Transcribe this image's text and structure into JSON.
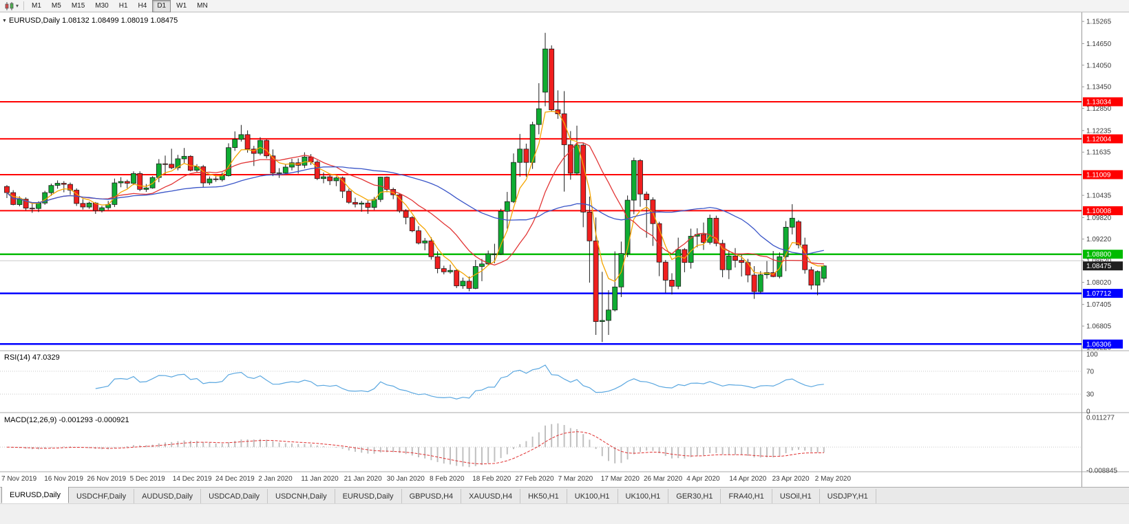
{
  "toolbar": {
    "timeframes": [
      "M1",
      "M5",
      "M15",
      "M30",
      "H1",
      "H4",
      "D1",
      "W1",
      "MN"
    ],
    "active_timeframe": "D1"
  },
  "chart_data": {
    "type": "candlestick",
    "symbol": "EURUSD",
    "period": "Daily",
    "info_line": "EURUSD,Daily 1.08132 1.08499 1.08019 1.08475",
    "ohlc": {
      "open": "1.08132",
      "high": "1.08499",
      "low": "1.08019",
      "close": "1.08475"
    },
    "price_axis": {
      "range": [
        1.0612,
        1.1544
      ],
      "ticks": [
        "1.15265",
        "1.14650",
        "1.14050",
        "1.13450",
        "1.12850",
        "1.12235",
        "1.11635",
        "1.10435",
        "1.09820",
        "1.09220",
        "1.08620",
        "1.08020",
        "1.07405",
        "1.06805",
        "1.06220"
      ]
    },
    "time_axis": [
      "7 Nov 2019",
      "16 Nov 2019",
      "26 Nov 2019",
      "5 Dec 2019",
      "14 Dec 2019",
      "24 Dec 2019",
      "2 Jan 2020",
      "11 Jan 2020",
      "21 Jan 2020",
      "30 Jan 2020",
      "8 Feb 2020",
      "18 Feb 2020",
      "27 Feb 2020",
      "7 Mar 2020",
      "17 Mar 2020",
      "26 Mar 2020",
      "4 Apr 2020",
      "14 Apr 2020",
      "23 Apr 2020",
      "2 May 2020"
    ],
    "candle_colors": {
      "up": "#0fac32",
      "down": "#f01f1f",
      "outline": "#1c1c1c"
    },
    "candles": [
      [
        1.1068,
        1.1072,
        1.1036,
        1.1051
      ],
      [
        1.1051,
        1.1058,
        1.1016,
        1.1018
      ],
      [
        1.1018,
        1.1041,
        1.1013,
        1.1033
      ],
      [
        1.1033,
        1.1038,
        1.1002,
        1.1008
      ],
      [
        1.1008,
        1.1021,
        1.0995,
        1.1007
      ],
      [
        1.1007,
        1.1027,
        1.0997,
        1.1022
      ],
      [
        1.1022,
        1.1056,
        1.1017,
        1.1051
      ],
      [
        1.1051,
        1.1076,
        1.1042,
        1.1071
      ],
      [
        1.1071,
        1.1085,
        1.1062,
        1.1077
      ],
      [
        1.1077,
        1.1083,
        1.1052,
        1.1074
      ],
      [
        1.1074,
        1.1079,
        1.1045,
        1.1058
      ],
      [
        1.1058,
        1.1063,
        1.1014,
        1.1021
      ],
      [
        1.1021,
        1.1033,
        1.1004,
        1.1011
      ],
      [
        1.1011,
        1.1026,
        1.1006,
        1.1022
      ],
      [
        1.1022,
        1.1025,
        1.0992,
        1.1001
      ],
      [
        1.1001,
        1.1014,
        1.0996,
        1.1009
      ],
      [
        1.1009,
        1.1028,
        1.1003,
        1.1018
      ],
      [
        1.1018,
        1.109,
        1.1011,
        1.1078
      ],
      [
        1.1078,
        1.1094,
        1.1066,
        1.1082
      ],
      [
        1.1082,
        1.1087,
        1.1063,
        1.1077
      ],
      [
        1.1077,
        1.111,
        1.1072,
        1.1104
      ],
      [
        1.1104,
        1.111,
        1.1055,
        1.106
      ],
      [
        1.106,
        1.1075,
        1.1053,
        1.1064
      ],
      [
        1.1064,
        1.1097,
        1.1062,
        1.1093
      ],
      [
        1.1093,
        1.1144,
        1.108,
        1.1131
      ],
      [
        1.1131,
        1.1154,
        1.1102,
        1.113
      ],
      [
        1.113,
        1.1173,
        1.1116,
        1.112
      ],
      [
        1.112,
        1.1156,
        1.1113,
        1.1145
      ],
      [
        1.1145,
        1.1175,
        1.1133,
        1.1152
      ],
      [
        1.1152,
        1.1155,
        1.111,
        1.1113
      ],
      [
        1.1113,
        1.113,
        1.1106,
        1.1123
      ],
      [
        1.1123,
        1.1128,
        1.1066,
        1.1078
      ],
      [
        1.1078,
        1.1096,
        1.1072,
        1.1089
      ],
      [
        1.1089,
        1.1096,
        1.1081,
        1.1087
      ],
      [
        1.1087,
        1.1107,
        1.1082,
        1.1098
      ],
      [
        1.1098,
        1.1188,
        1.1096,
        1.1176
      ],
      [
        1.1176,
        1.1221,
        1.1167,
        1.1199
      ],
      [
        1.1199,
        1.1239,
        1.1193,
        1.1212
      ],
      [
        1.1212,
        1.1224,
        1.1162,
        1.1172
      ],
      [
        1.1172,
        1.1181,
        1.1125,
        1.116
      ],
      [
        1.116,
        1.1205,
        1.1155,
        1.1196
      ],
      [
        1.1196,
        1.1199,
        1.1146,
        1.1153
      ],
      [
        1.1153,
        1.1171,
        1.1097,
        1.1105
      ],
      [
        1.1105,
        1.1119,
        1.1092,
        1.1106
      ],
      [
        1.1106,
        1.113,
        1.1103,
        1.1122
      ],
      [
        1.1122,
        1.1145,
        1.1113,
        1.1134
      ],
      [
        1.1134,
        1.1146,
        1.1104,
        1.1127
      ],
      [
        1.1127,
        1.1163,
        1.1119,
        1.115
      ],
      [
        1.115,
        1.1158,
        1.1128,
        1.1136
      ],
      [
        1.1136,
        1.1141,
        1.1086,
        1.109
      ],
      [
        1.109,
        1.1107,
        1.1077,
        1.1095
      ],
      [
        1.1095,
        1.1101,
        1.1072,
        1.1084
      ],
      [
        1.1084,
        1.1096,
        1.1069,
        1.1092
      ],
      [
        1.1092,
        1.1096,
        1.1036,
        1.1055
      ],
      [
        1.1055,
        1.1062,
        1.102,
        1.1024
      ],
      [
        1.1024,
        1.1037,
        1.101,
        1.1019
      ],
      [
        1.1019,
        1.1028,
        1.0998,
        1.1022
      ],
      [
        1.1022,
        1.1029,
        1.0992,
        1.101
      ],
      [
        1.101,
        1.1039,
        1.1003,
        1.1032
      ],
      [
        1.1032,
        1.1095,
        1.1025,
        1.1094
      ],
      [
        1.1094,
        1.1096,
        1.1052,
        1.106
      ],
      [
        1.106,
        1.1065,
        1.1033,
        1.1045
      ],
      [
        1.1045,
        1.1048,
        1.0995,
        1.1
      ],
      [
        1.1,
        1.1005,
        1.0963,
        1.0982
      ],
      [
        1.0982,
        1.0986,
        1.0941,
        1.0945
      ],
      [
        1.0945,
        1.0958,
        1.0907,
        1.0911
      ],
      [
        1.0911,
        1.0925,
        1.0891,
        1.0917
      ],
      [
        1.0917,
        1.0927,
        1.0865,
        1.0873
      ],
      [
        1.0873,
        1.0888,
        1.0827,
        1.084
      ],
      [
        1.084,
        1.0848,
        1.0824,
        1.0831
      ],
      [
        1.0831,
        1.0851,
        1.0826,
        1.0835
      ],
      [
        1.0835,
        1.0839,
        1.0786,
        1.0792
      ],
      [
        1.0792,
        1.0815,
        1.0784,
        1.0805
      ],
      [
        1.0805,
        1.0818,
        1.0777,
        1.0785
      ],
      [
        1.0785,
        1.0864,
        1.0783,
        1.0846
      ],
      [
        1.0846,
        1.0867,
        1.0805,
        1.0853
      ],
      [
        1.0853,
        1.089,
        1.0851,
        1.0881
      ],
      [
        1.0881,
        1.0909,
        1.0855,
        1.0881
      ],
      [
        1.0881,
        1.1006,
        1.0878,
        1.0999
      ],
      [
        1.0999,
        1.1053,
        1.0951,
        1.1026
      ],
      [
        1.1026,
        1.116,
        1.1022,
        1.1135
      ],
      [
        1.1135,
        1.1214,
        1.1095,
        1.1172
      ],
      [
        1.1172,
        1.1187,
        1.1095,
        1.1135
      ],
      [
        1.1135,
        1.1248,
        1.1117,
        1.124
      ],
      [
        1.124,
        1.1355,
        1.1213,
        1.1284
      ],
      [
        1.133,
        1.1495,
        1.1291,
        1.145
      ],
      [
        1.145,
        1.146,
        1.1277,
        1.1281
      ],
      [
        1.1281,
        1.1335,
        1.1256,
        1.127
      ],
      [
        1.127,
        1.1333,
        1.1054,
        1.1184
      ],
      [
        1.1184,
        1.1222,
        1.1087,
        1.1105
      ],
      [
        1.1105,
        1.1237,
        1.11,
        1.1183
      ],
      [
        1.1183,
        1.1189,
        1.0955,
        1.0997
      ],
      [
        1.0997,
        1.104,
        1.0801,
        1.0917
      ],
      [
        1.0917,
        1.0982,
        1.0656,
        1.0693
      ],
      [
        1.0693,
        1.0831,
        1.0636,
        1.0696
      ],
      [
        1.0696,
        1.078,
        1.0656,
        1.0725
      ],
      [
        1.0725,
        1.0888,
        1.0721,
        1.0789
      ],
      [
        1.0789,
        1.0915,
        1.0761,
        1.0882
      ],
      [
        1.0882,
        1.1043,
        1.0872,
        1.103
      ],
      [
        1.103,
        1.1148,
        1.0991,
        1.114
      ],
      [
        1.114,
        1.1144,
        1.1012,
        1.1047
      ],
      [
        1.1047,
        1.1054,
        1.0926,
        1.1031
      ],
      [
        1.1031,
        1.1038,
        1.0903,
        1.0965
      ],
      [
        1.0965,
        1.097,
        1.0819,
        1.0858
      ],
      [
        1.0858,
        1.0864,
        1.0773,
        1.0808
      ],
      [
        1.0808,
        1.0827,
        1.0768,
        1.0791
      ],
      [
        1.0791,
        1.0926,
        1.0783,
        1.0893
      ],
      [
        1.0893,
        1.0897,
        1.083,
        1.0857
      ],
      [
        1.0857,
        1.0951,
        1.084,
        1.093
      ],
      [
        1.093,
        1.0952,
        1.0899,
        1.0935
      ],
      [
        1.0935,
        1.0968,
        1.0892,
        1.0913
      ],
      [
        1.0913,
        1.099,
        1.0907,
        1.098
      ],
      [
        1.098,
        1.0987,
        1.0902,
        1.091
      ],
      [
        1.091,
        1.092,
        1.0816,
        1.0837
      ],
      [
        1.0837,
        1.0891,
        1.0811,
        1.0875
      ],
      [
        1.0875,
        1.0897,
        1.0843,
        1.0863
      ],
      [
        1.0863,
        1.0879,
        1.0818,
        1.0857
      ],
      [
        1.0857,
        1.0867,
        1.0802,
        1.0822
      ],
      [
        1.0822,
        1.0847,
        1.0756,
        1.0776
      ],
      [
        1.0776,
        1.0833,
        1.0771,
        1.0823
      ],
      [
        1.0823,
        1.0861,
        1.0812,
        1.0829
      ],
      [
        1.0829,
        1.0889,
        1.0816,
        1.0818
      ],
      [
        1.0818,
        1.0885,
        1.0813,
        1.0873
      ],
      [
        1.0873,
        1.0972,
        1.0833,
        1.0955
      ],
      [
        1.0955,
        1.1019,
        1.0935,
        1.098
      ],
      [
        1.097,
        1.0975,
        1.0896,
        1.0906
      ],
      [
        1.0906,
        1.0926,
        1.0826,
        1.0837
      ],
      [
        1.0837,
        1.0845,
        1.0782,
        1.0794
      ],
      [
        1.0794,
        1.0835,
        1.0766,
        1.0832
      ],
      [
        1.08132,
        1.08499,
        1.08019,
        1.08475
      ]
    ],
    "moving_averages": [
      {
        "name": "fast-ma",
        "period": 5,
        "method": "ema",
        "color": "#f5a500"
      },
      {
        "name": "mid-ma",
        "period": 13,
        "method": "sma",
        "color": "#e23535"
      },
      {
        "name": "slow-ma",
        "period": 34,
        "method": "sma",
        "color": "#3a55c8"
      }
    ],
    "h_lines": [
      {
        "price": 1.13034,
        "label": "1.13034",
        "color": "#ff0000",
        "width": 2
      },
      {
        "price": 1.12004,
        "label": "1.12004",
        "color": "#ff0000",
        "width": 2
      },
      {
        "price": 1.11009,
        "label": "1.11009",
        "color": "#ff0000",
        "width": 2
      },
      {
        "price": 1.10008,
        "label": "1.10008",
        "color": "#ff0000",
        "width": 2
      },
      {
        "price": 1.088,
        "label": "1.08800",
        "color": "#00bb00",
        "width": 2.5
      },
      {
        "price": 1.0862,
        "label": null,
        "color": "#c9c9c9",
        "width": 1
      },
      {
        "price": 1.07712,
        "label": "1.07712",
        "color": "#0000ff",
        "width": 2.5
      },
      {
        "price": 1.06306,
        "label": "1.06306",
        "color": "#0000ff",
        "width": 2.5
      }
    ],
    "current_price": {
      "label": "1.08475",
      "price": 1.08475,
      "bg": "#1f1f1f"
    },
    "rsi": {
      "info_line": "RSI(14) 47.0329",
      "name": "RSI",
      "period": 14,
      "value": "47.0329",
      "levels": [
        "100",
        "70",
        "30",
        "0"
      ],
      "color": "#5aa7e0"
    },
    "macd": {
      "info_line": "MACD(12,26,9) -0.001293 -0.000921",
      "fast": 12,
      "slow": 26,
      "signal": 9,
      "value": "-0.001293",
      "signal_value": "-0.000921",
      "scale_max": 0.011277,
      "scale_min": -0.008845,
      "scale_max_label": "0.011277",
      "scale_min_label": "-0.008845",
      "histogram_color": "#c0c0c0",
      "signal_color": "#e03030"
    }
  },
  "tabs": {
    "active_index": 0,
    "items": [
      "EURUSD,Daily",
      "USDCHF,Daily",
      "AUDUSD,Daily",
      "USDCAD,Daily",
      "USDCNH,Daily",
      "EURUSD,Daily",
      "GBPUSD,H4",
      "XAUUSD,H4",
      "HK50,H1",
      "UK100,H1",
      "UK100,H1",
      "GER30,H1",
      "FRA40,H1",
      "USOil,H1",
      "USDJPY,H1"
    ]
  }
}
